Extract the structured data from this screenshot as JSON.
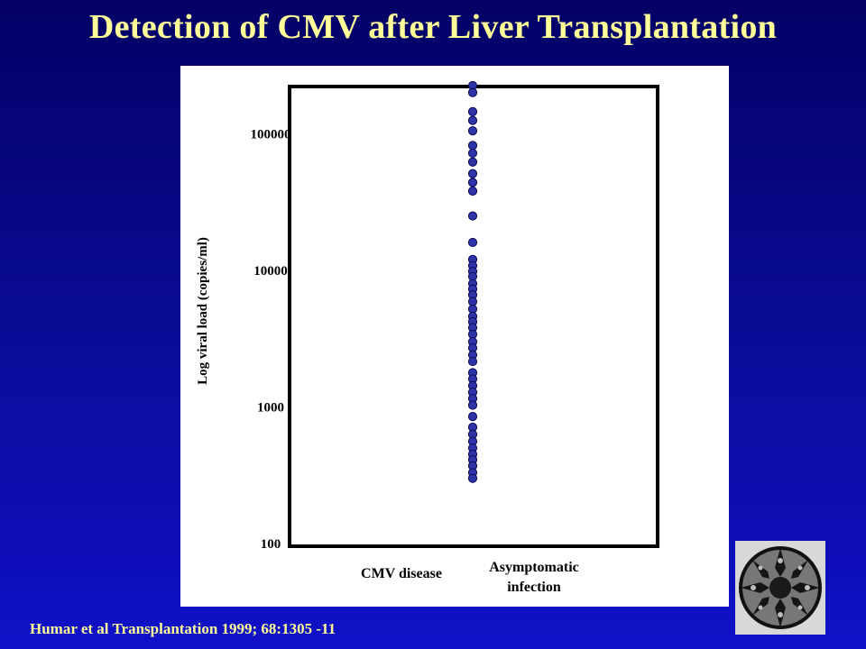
{
  "slide": {
    "title": "Detection of CMV after Liver Transplantation",
    "citation": "Humar et al Transplantation 1999; 68:1305 -11",
    "colors": {
      "background_top": "#040066",
      "background_bottom": "#1010c8",
      "title_text": "#ffff99",
      "dot_fill": "#2e34a8",
      "dot_stroke": "#0a0a55"
    },
    "thumbnail_icon": "escher-circle-limit-woodcut-icon"
  },
  "chart_data": {
    "type": "scatter",
    "title": "",
    "xlabel": "",
    "ylabel": "Log viral load (copies/ml)",
    "y_scale": "log",
    "ylim": [
      100,
      250000
    ],
    "grid": false,
    "legend": "none",
    "yticks": [
      100000,
      10000,
      1000,
      100
    ],
    "ytick_labels": [
      "100000",
      "10000",
      "1000",
      "100"
    ],
    "categories": [
      "CMV disease",
      "Asymptomatic infection"
    ],
    "category_labels": [
      [
        "CMV disease"
      ],
      [
        "Asymptomatic",
        "infection"
      ]
    ],
    "series": [
      {
        "category": "CMV disease",
        "marker": "bar",
        "values": [
          250000
        ]
      },
      {
        "category": "Asymptomatic infection",
        "marker": "dot",
        "values": [
          225000,
          200000,
          145000,
          125000,
          105000,
          82000,
          72000,
          62000,
          51000,
          44000,
          38000,
          25000,
          16000,
          12000,
          10800,
          9800,
          9000,
          8000,
          7300,
          6600,
          5900,
          5200,
          4600,
          4200,
          3800,
          3400,
          3000,
          2700,
          2400,
          2150,
          1780,
          1600,
          1430,
          1280,
          1150,
          1030,
          850,
          710,
          630,
          560,
          500,
          450,
          410,
          370,
          330,
          300
        ]
      }
    ]
  }
}
